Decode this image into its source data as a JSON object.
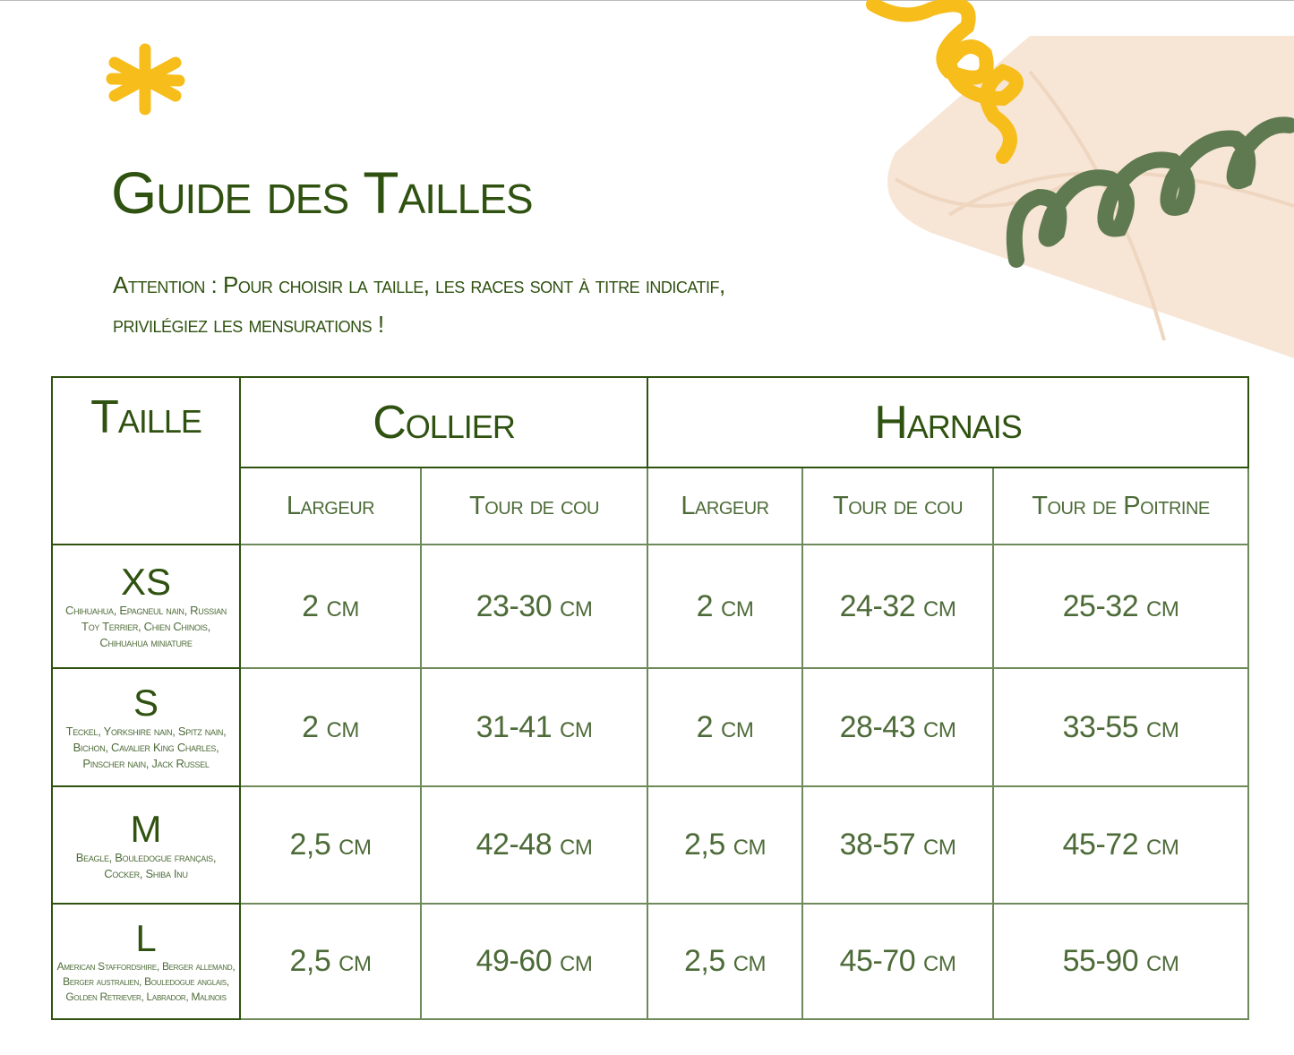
{
  "title": "Guide des Tailles",
  "note": {
    "line1": "Attention : Pour choisir la taille, les races sont à titre indicatif,",
    "line2": "privilégiez les mensurations !"
  },
  "colors": {
    "dark_green": "#2f5210",
    "text_green": "#4d6b38",
    "yellow": "#f6bd1b",
    "sage": "#5f7a50",
    "beige": "#f7e6d6"
  },
  "decorations": [
    "asterisk-icon",
    "yellow-spiral",
    "green-spiral",
    "beige-shape"
  ],
  "table": {
    "headers": {
      "taille": "Taille",
      "collier": "Collier",
      "harnais": "Harnais"
    },
    "subheaders": [
      "Largeur",
      "Tour de cou",
      "Largeur",
      "Tour de cou",
      "Tour de Poitrine"
    ],
    "rows": [
      {
        "size": "XS",
        "breeds": "Chihuahua, Epagneul nain, Russian Toy Terrier, Chien Chinois, Chihuahua miniature",
        "values": [
          "2 cm",
          "23-30 cm",
          "2 cm",
          "24-32 cm",
          "25-32 cm"
        ]
      },
      {
        "size": "S",
        "breeds": "Teckel, Yorkshire nain, Spitz nain, Bichon, Cavalier King Charles, Pinscher nain, Jack Russel",
        "values": [
          "2 cm",
          "31-41 cm",
          "2 cm",
          "28-43 cm",
          "33-55 cm"
        ]
      },
      {
        "size": "M",
        "breeds": "Beagle, Bouledogue français, Cocker, Shiba Inu",
        "values": [
          "2,5 cm",
          "42-48 cm",
          "2,5 cm",
          "38-57 cm",
          "45-72 cm"
        ]
      },
      {
        "size": "L",
        "breeds": "American Staffordshire, Berger allemand, Berger australien, Bouledogue anglais, Golden Retriever, Labrador, Malinois",
        "values": [
          "2,5 cm",
          "49-60 cm",
          "2,5 cm",
          "45-70 cm",
          "55-90 cm"
        ]
      }
    ]
  }
}
